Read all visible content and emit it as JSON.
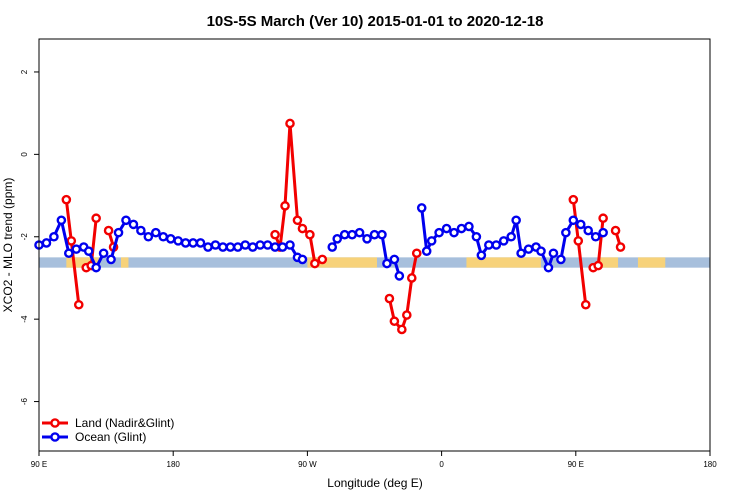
{
  "chart_data": {
    "type": "line",
    "title": "10S-5S March (Ver 10)   2015-01-01 to 2020-12-18",
    "xlabel": "Longitude (deg E)",
    "ylabel": "XCO2 - MLO trend (ppm)",
    "xlim": [
      -90,
      180
    ],
    "ylim": [
      -7.2,
      2.8
    ],
    "x_ticks": [
      -90,
      -36,
      18,
      72,
      126,
      180
    ],
    "x_tick_labels": [
      "90 E",
      "180",
      "90 W",
      "0",
      "90 E",
      "180"
    ],
    "y_ticks": [
      -6,
      -4,
      -2,
      0,
      2
    ],
    "y_tick_labels": [
      "-6",
      "-4",
      "-2",
      "0",
      "2"
    ],
    "legend_position": "bottom-left",
    "land_band": {
      "y_range": [
        -2.75,
        -2.5
      ],
      "base_color": "#A7BFDC",
      "land_color": "#F7D27A",
      "land_segments": [
        [
          -79,
          -66
        ],
        [
          -57,
          -54
        ],
        [
          18,
          46
        ],
        [
          82,
          112
        ],
        [
          135,
          143
        ],
        [
          151,
          162
        ]
      ]
    },
    "series": [
      {
        "name": "Land (Nadir&Glint)",
        "color": "#F20000",
        "segments": [
          [
            [
              -79,
              -1.1
            ],
            [
              -77,
              -2.1
            ],
            [
              -74,
              -3.65
            ]
          ],
          [
            [
              -71,
              -2.75
            ],
            [
              -69,
              -2.7
            ],
            [
              -67,
              -1.55
            ]
          ],
          [
            [
              -62,
              -1.85
            ],
            [
              -60,
              -2.25
            ]
          ],
          [
            [
              5,
              -1.95
            ],
            [
              7,
              -2.25
            ],
            [
              9,
              -1.25
            ],
            [
              11,
              0.75
            ],
            [
              14,
              -1.6
            ],
            [
              16,
              -1.8
            ],
            [
              19,
              -1.95
            ],
            [
              21,
              -2.65
            ],
            [
              24,
              -2.55
            ]
          ],
          [
            [
              51,
              -3.5
            ],
            [
              53,
              -4.05
            ],
            [
              56,
              -4.25
            ],
            [
              58,
              -3.9
            ],
            [
              60,
              -3.0
            ],
            [
              62,
              -2.4
            ]
          ],
          [
            [
              125,
              -1.1
            ],
            [
              127,
              -2.1
            ],
            [
              130,
              -3.65
            ]
          ],
          [
            [
              133,
              -2.75
            ],
            [
              135,
              -2.7
            ],
            [
              137,
              -1.55
            ]
          ],
          [
            [
              142,
              -1.85
            ],
            [
              144,
              -2.25
            ]
          ]
        ]
      },
      {
        "name": "Ocean (Glint)",
        "color": "#0000EE",
        "segments": [
          [
            [
              -90,
              -2.2
            ],
            [
              -87,
              -2.15
            ],
            [
              -84,
              -2.0
            ],
            [
              -81,
              -1.6
            ],
            [
              -78,
              -2.4
            ],
            [
              -75,
              -2.3
            ],
            [
              -72,
              -2.25
            ],
            [
              -70,
              -2.35
            ],
            [
              -67,
              -2.75
            ],
            [
              -64,
              -2.4
            ]
          ],
          [
            [
              -61,
              -2.55
            ],
            [
              -58,
              -1.9
            ],
            [
              -55,
              -1.6
            ],
            [
              -52,
              -1.7
            ],
            [
              -49,
              -1.85
            ],
            [
              -46,
              -2.0
            ],
            [
              -43,
              -1.9
            ],
            [
              -40,
              -2.0
            ],
            [
              -37,
              -2.05
            ],
            [
              -34,
              -2.1
            ],
            [
              -31,
              -2.15
            ],
            [
              -28,
              -2.15
            ],
            [
              -25,
              -2.15
            ],
            [
              -22,
              -2.25
            ],
            [
              -19,
              -2.2
            ],
            [
              -16,
              -2.25
            ],
            [
              -13,
              -2.25
            ],
            [
              -10,
              -2.25
            ],
            [
              -7,
              -2.2
            ],
            [
              -4,
              -2.25
            ],
            [
              -1,
              -2.2
            ],
            [
              2,
              -2.2
            ],
            [
              5,
              -2.25
            ],
            [
              8,
              -2.25
            ],
            [
              11,
              -2.2
            ],
            [
              14,
              -2.5
            ],
            [
              16,
              -2.55
            ]
          ],
          [
            [
              28,
              -2.25
            ],
            [
              30,
              -2.05
            ],
            [
              33,
              -1.95
            ],
            [
              36,
              -1.95
            ],
            [
              39,
              -1.9
            ],
            [
              42,
              -2.05
            ],
            [
              45,
              -1.95
            ],
            [
              48,
              -1.95
            ],
            [
              50,
              -2.65
            ],
            [
              53,
              -2.55
            ],
            [
              55,
              -2.95
            ]
          ],
          [
            [
              64,
              -1.3
            ],
            [
              66,
              -2.35
            ],
            [
              68,
              -2.1
            ],
            [
              71,
              -1.9
            ],
            [
              74,
              -1.8
            ],
            [
              77,
              -1.9
            ],
            [
              80,
              -1.8
            ],
            [
              83,
              -1.75
            ],
            [
              86,
              -2.0
            ],
            [
              88,
              -2.45
            ],
            [
              91,
              -2.2
            ],
            [
              94,
              -2.2
            ],
            [
              97,
              -2.1
            ],
            [
              100,
              -2.0
            ],
            [
              102,
              -1.6
            ],
            [
              104,
              -2.4
            ],
            [
              107,
              -2.3
            ],
            [
              110,
              -2.25
            ],
            [
              112,
              -2.35
            ],
            [
              115,
              -2.75
            ],
            [
              117,
              -2.4
            ]
          ],
          [
            [
              120,
              -2.55
            ],
            [
              122,
              -1.9
            ],
            [
              125,
              -1.6
            ],
            [
              128,
              -1.7
            ],
            [
              131,
              -1.85
            ],
            [
              134,
              -2.0
            ],
            [
              137,
              -1.9
            ]
          ]
        ]
      }
    ]
  }
}
